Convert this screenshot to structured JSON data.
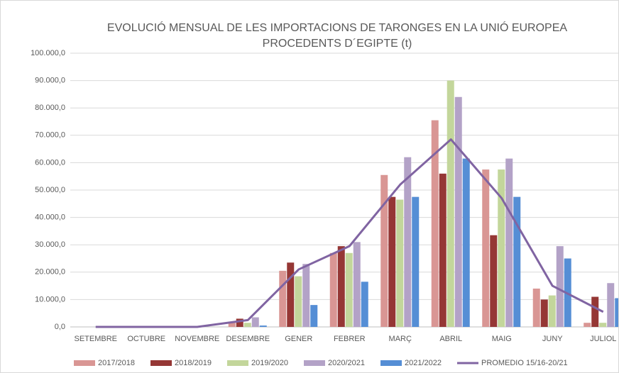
{
  "chart_data": {
    "type": "bar",
    "title": [
      "EVOLUCIÓ MENSUAL DE LES IMPORTACIONS DE TARONGES EN LA UNIÓ EUROPEA",
      "PROCEDENTS D´EGIPTE (t)"
    ],
    "categories": [
      "SETEMBRE",
      "OCTUBRE",
      "NOVEMBRE",
      "DESEMBRE",
      "GENER",
      "FEBRER",
      "MARÇ",
      "ABRIL",
      "MAIG",
      "JUNY",
      "JULIOL"
    ],
    "series": [
      {
        "name": "2017/2018",
        "color": "#d99694",
        "type": "bar",
        "values": [
          0,
          0,
          0,
          1500,
          20500,
          27000,
          55500,
          75500,
          57500,
          14000,
          1500
        ]
      },
      {
        "name": "2018/2019",
        "color": "#953735",
        "type": "bar",
        "values": [
          0,
          0,
          0,
          3000,
          23500,
          29500,
          47500,
          56000,
          33500,
          10000,
          11000
        ]
      },
      {
        "name": "2019/2020",
        "color": "#c3d69b",
        "type": "bar",
        "values": [
          0,
          0,
          0,
          1500,
          18500,
          27000,
          46500,
          90000,
          57500,
          11500,
          1500
        ]
      },
      {
        "name": "2020/2021",
        "color": "#b3a2c7",
        "type": "bar",
        "values": [
          0,
          0,
          0,
          3500,
          23000,
          31000,
          62000,
          84000,
          61500,
          29500,
          16000
        ]
      },
      {
        "name": "2021/2022",
        "color": "#558ed5",
        "type": "bar",
        "values": [
          0,
          0,
          0,
          500,
          8000,
          16500,
          47500,
          61500,
          47500,
          25000,
          10500
        ]
      },
      {
        "name": "PROMEDIO 15/16-20/21",
        "color": "#8064a2",
        "type": "line",
        "values": [
          0,
          0,
          0,
          2500,
          21000,
          29500,
          52000,
          68500,
          47000,
          15000,
          5500
        ]
      }
    ],
    "ylim": [
      0,
      100000
    ],
    "yticks": [
      {
        "value": 0,
        "label": "0,0"
      },
      {
        "value": 10000,
        "label": "10.000,0"
      },
      {
        "value": 20000,
        "label": "20.000,0"
      },
      {
        "value": 30000,
        "label": "30.000,0"
      },
      {
        "value": 40000,
        "label": "40.000,0"
      },
      {
        "value": 50000,
        "label": "50.000,0"
      },
      {
        "value": 60000,
        "label": "60.000,0"
      },
      {
        "value": 70000,
        "label": "70.000,0"
      },
      {
        "value": 80000,
        "label": "80.000,0"
      },
      {
        "value": 90000,
        "label": "90.000,0"
      },
      {
        "value": 100000,
        "label": "100.000,0"
      }
    ],
    "grid": true,
    "legend": "bottom"
  }
}
